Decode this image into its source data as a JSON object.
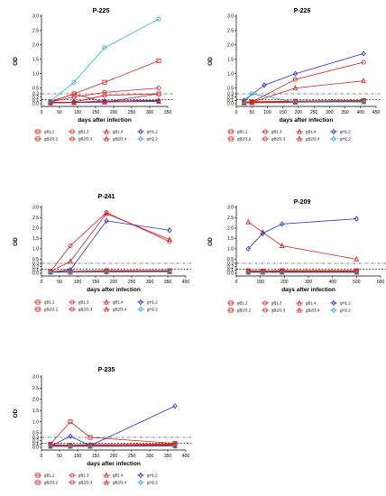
{
  "colors": {
    "red": "#cc1f1f",
    "blue": "#2a2fbf",
    "cyan": "#29a8e0",
    "axis": "#000000"
  },
  "shared": {
    "ylabel": "OD",
    "xlabel": "days after infection",
    "cutoff_lines": [
      {
        "y": 0.3,
        "style": "dash-dot"
      },
      {
        "y": 0.12,
        "style": "dashed"
      }
    ]
  },
  "chart_data": [
    {
      "type": "line",
      "title": "P-225",
      "xlabel": "days after infection",
      "ylabel": "OD",
      "xlim": [
        0,
        350
      ],
      "xticks": [
        0,
        50,
        100,
        150,
        200,
        250,
        300,
        350
      ],
      "legend": {
        "placement": "below",
        "entries": [
          "gB1.2",
          "gB1.3",
          "gB1.4",
          "gH1.2",
          "gB2/3.2",
          "gB2/3.3",
          "gB2/3.4",
          "gH2.2"
        ]
      },
      "series": [
        {
          "name": "gB1.2",
          "color": "red",
          "marker": "square",
          "x": [
            25,
            90,
            175,
            325
          ],
          "y": [
            0.05,
            0.3,
            0.05,
            0.3
          ]
        },
        {
          "name": "gB1.3",
          "color": "red",
          "marker": "circle",
          "x": [
            25,
            90,
            175,
            325
          ],
          "y": [
            0.04,
            0.05,
            0.25,
            0.3
          ]
        },
        {
          "name": "gB1.4",
          "color": "red",
          "marker": "triangle",
          "x": [
            25,
            90,
            175,
            325
          ],
          "y": [
            0.03,
            0.04,
            0.05,
            0.08
          ]
        },
        {
          "name": "gH1.2",
          "color": "blue",
          "marker": "diamond",
          "x": [
            25,
            90,
            175,
            325
          ],
          "y": [
            0.03,
            0.04,
            0.08,
            0.1
          ]
        },
        {
          "name": "gB2/3.2",
          "color": "red",
          "marker": "square",
          "x": [
            25,
            90,
            175,
            325
          ],
          "y": [
            0.06,
            0.3,
            0.7,
            1.45
          ]
        },
        {
          "name": "gB2/3.3",
          "color": "red",
          "marker": "circle",
          "x": [
            25,
            90,
            175,
            325
          ],
          "y": [
            0.05,
            0.2,
            0.35,
            0.5
          ]
        },
        {
          "name": "gB2/3.4",
          "color": "red",
          "marker": "triangle",
          "x": [
            25,
            90,
            175,
            325
          ],
          "y": [
            0.02,
            0.03,
            0.05,
            0.07
          ]
        },
        {
          "name": "gH2.2",
          "color": "cyan",
          "marker": "circle",
          "x": [
            25,
            90,
            175,
            325
          ],
          "y": [
            0.08,
            0.7,
            1.9,
            2.9
          ]
        }
      ]
    },
    {
      "type": "line",
      "title": "P-226",
      "xlabel": "days after infection",
      "ylabel": "OD",
      "xlim": [
        0,
        450
      ],
      "xticks": [
        0,
        50,
        100,
        150,
        200,
        250,
        300,
        350,
        400,
        450
      ],
      "legend": {
        "placement": "below",
        "entries": [
          "gB1.2",
          "gB1.3",
          "gB1.4",
          "gH1.2",
          "gB2/3.2",
          "gB2/3.3",
          "gB2/3.4",
          "gH2.2"
        ]
      },
      "series": [
        {
          "name": "gB1.2",
          "color": "red",
          "marker": "square",
          "x": [
            25,
            50,
            190,
            410
          ],
          "y": [
            0.05,
            0.06,
            0.08,
            0.1
          ]
        },
        {
          "name": "gB1.3",
          "color": "red",
          "marker": "circle",
          "x": [
            25,
            50,
            190,
            410
          ],
          "y": [
            0.04,
            0.05,
            0.8,
            1.4
          ]
        },
        {
          "name": "gB1.4",
          "color": "red",
          "marker": "triangle",
          "x": [
            25,
            50,
            190,
            410
          ],
          "y": [
            0.03,
            0.04,
            0.5,
            0.75
          ]
        },
        {
          "name": "gH1.2",
          "color": "blue",
          "marker": "diamond",
          "x": [
            25,
            90,
            190,
            410
          ],
          "y": [
            0.1,
            0.6,
            1.0,
            1.7
          ]
        },
        {
          "name": "gB2/3.2",
          "color": "red",
          "marker": "square",
          "x": [
            25,
            50,
            190,
            410
          ],
          "y": [
            0.04,
            0.05,
            0.06,
            0.08
          ]
        },
        {
          "name": "gB2/3.3",
          "color": "red",
          "marker": "circle",
          "x": [
            25,
            50,
            190,
            410
          ],
          "y": [
            0.03,
            0.04,
            0.05,
            0.07
          ]
        },
        {
          "name": "gB2/3.4",
          "color": "red",
          "marker": "triangle",
          "x": [
            25,
            50,
            190,
            410
          ],
          "y": [
            0.02,
            0.03,
            0.04,
            0.06
          ]
        },
        {
          "name": "gH2.2",
          "color": "cyan",
          "marker": "circle",
          "x": [
            25,
            50,
            190,
            410
          ],
          "y": [
            0.02,
            0.3,
            0.05,
            0.05
          ]
        }
      ]
    },
    {
      "type": "line",
      "title": "P-241",
      "xlabel": "days after infection",
      "ylabel": "OD",
      "xlim": [
        0,
        400
      ],
      "xticks": [
        0,
        50,
        100,
        150,
        200,
        250,
        300,
        350,
        400
      ],
      "legend": {
        "placement": "below",
        "entries": [
          "gB1.2",
          "gB1.3",
          "gB1.4",
          "gH1.2",
          "gB2/3.2",
          "gB2/3.3",
          "gB2/3.4",
          "gH2.2"
        ]
      },
      "series": [
        {
          "name": "gB1.2",
          "color": "red",
          "marker": "square",
          "x": [
            25,
            80,
            180,
            355
          ],
          "y": [
            0.05,
            0.06,
            0.08,
            0.08
          ]
        },
        {
          "name": "gB1.3",
          "color": "red",
          "marker": "circle",
          "x": [
            25,
            80,
            180,
            355
          ],
          "y": [
            0.05,
            1.15,
            2.75,
            1.35
          ]
        },
        {
          "name": "gB1.4",
          "color": "red",
          "marker": "triangle",
          "x": [
            25,
            80,
            180,
            355
          ],
          "y": [
            0.04,
            0.4,
            2.7,
            1.45
          ]
        },
        {
          "name": "gH1.2",
          "color": "blue",
          "marker": "diamond",
          "x": [
            25,
            80,
            180,
            355
          ],
          "y": [
            0.04,
            0.1,
            2.35,
            1.9
          ]
        },
        {
          "name": "gB2/3.2",
          "color": "red",
          "marker": "square",
          "x": [
            25,
            80,
            180,
            355
          ],
          "y": [
            0.04,
            0.05,
            0.06,
            0.06
          ]
        },
        {
          "name": "gB2/3.3",
          "color": "red",
          "marker": "circle",
          "x": [
            25,
            80,
            180,
            355
          ],
          "y": [
            0.03,
            0.04,
            0.05,
            0.05
          ]
        },
        {
          "name": "gB2/3.4",
          "color": "red",
          "marker": "triangle",
          "x": [
            25,
            80,
            180,
            355
          ],
          "y": [
            0.03,
            0.03,
            0.04,
            0.04
          ]
        },
        {
          "name": "gH2.2",
          "color": "cyan",
          "marker": "circle",
          "x": [
            25,
            80,
            180,
            355
          ],
          "y": [
            0.02,
            0.03,
            0.03,
            0.04
          ]
        }
      ]
    },
    {
      "type": "line",
      "title": "P-209",
      "xlabel": "days after infection",
      "ylabel": "OD",
      "xlim": [
        0,
        600
      ],
      "xticks": [
        0,
        100,
        200,
        300,
        400,
        500,
        600
      ],
      "legend": {
        "placement": "below",
        "entries": [
          "gB1.2",
          "gB1.3",
          "gB1.4",
          "gH1.2",
          "gB2/3.2",
          "gB2/3.3",
          "gB2/3.4",
          "gH2.2"
        ]
      },
      "series": [
        {
          "name": "gB1.2",
          "color": "red",
          "marker": "square",
          "x": [
            50,
            110,
            190,
            500
          ],
          "y": [
            0.08,
            0.07,
            0.08,
            0.08
          ]
        },
        {
          "name": "gB1.3",
          "color": "red",
          "marker": "circle",
          "x": [
            50,
            110,
            190,
            500
          ],
          "y": [
            0.06,
            0.05,
            0.06,
            0.06
          ]
        },
        {
          "name": "gB1.4",
          "color": "red",
          "marker": "triangle",
          "x": [
            50,
            110,
            190,
            500
          ],
          "y": [
            2.3,
            1.8,
            1.15,
            0.5
          ]
        },
        {
          "name": "gH1.2",
          "color": "blue",
          "marker": "diamond",
          "x": [
            50,
            110,
            190,
            500
          ],
          "y": [
            1.0,
            1.75,
            2.2,
            2.45
          ]
        },
        {
          "name": "gB2/3.2",
          "color": "red",
          "marker": "square",
          "x": [
            50,
            110,
            190,
            500
          ],
          "y": [
            0.05,
            0.04,
            0.05,
            0.05
          ]
        },
        {
          "name": "gB2/3.3",
          "color": "red",
          "marker": "circle",
          "x": [
            50,
            110,
            190,
            500
          ],
          "y": [
            0.04,
            0.03,
            0.04,
            0.04
          ]
        },
        {
          "name": "gB2/3.4",
          "color": "red",
          "marker": "triangle",
          "x": [
            50,
            110,
            190,
            500
          ],
          "y": [
            0.03,
            0.03,
            0.03,
            0.03
          ]
        },
        {
          "name": "gH2.2",
          "color": "cyan",
          "marker": "circle",
          "x": [
            50,
            110,
            190,
            500
          ],
          "y": [
            0.02,
            0.02,
            0.02,
            0.02
          ]
        }
      ]
    },
    {
      "type": "line",
      "title": "P-235",
      "xlabel": "days after infection",
      "ylabel": "OD",
      "xlim": [
        0,
        400
      ],
      "xticks": [
        0,
        50,
        100,
        150,
        200,
        250,
        300,
        350,
        400
      ],
      "legend": {
        "placement": "below",
        "entries": [
          "gB1.2",
          "gB1.3",
          "gB1.4",
          "gH1.2",
          "gB2/3.2",
          "gB2/3.3",
          "gB2/3.4",
          "gH2.2"
        ]
      },
      "series": [
        {
          "name": "gB1.2",
          "color": "red",
          "marker": "square",
          "x": [
            25,
            80,
            135,
            370
          ],
          "y": [
            0.1,
            1.0,
            0.3,
            0.12
          ]
        },
        {
          "name": "gB1.3",
          "color": "red",
          "marker": "circle",
          "x": [
            25,
            80,
            135,
            370
          ],
          "y": [
            0.08,
            0.07,
            0.08,
            0.1
          ]
        },
        {
          "name": "gB1.4",
          "color": "red",
          "marker": "triangle",
          "x": [
            25,
            80,
            135,
            370
          ],
          "y": [
            0.06,
            0.05,
            0.06,
            0.08
          ]
        },
        {
          "name": "gH1.2",
          "color": "blue",
          "marker": "diamond",
          "x": [
            25,
            80,
            135,
            370
          ],
          "y": [
            0.04,
            0.35,
            0.05,
            1.7
          ]
        },
        {
          "name": "gB2/3.2",
          "color": "red",
          "marker": "square",
          "x": [
            25,
            80,
            135,
            370
          ],
          "y": [
            0.05,
            0.04,
            0.05,
            0.06
          ]
        },
        {
          "name": "gB2/3.3",
          "color": "red",
          "marker": "circle",
          "x": [
            25,
            80,
            135,
            370
          ],
          "y": [
            0.04,
            0.03,
            0.04,
            0.05
          ]
        },
        {
          "name": "gB2/3.4",
          "color": "red",
          "marker": "triangle",
          "x": [
            25,
            80,
            135,
            370
          ],
          "y": [
            0.03,
            0.03,
            0.03,
            0.04
          ]
        },
        {
          "name": "gH2.2",
          "color": "cyan",
          "marker": "circle",
          "x": [
            25,
            80,
            135,
            370
          ],
          "y": [
            0.02,
            0.02,
            0.02,
            0.03
          ]
        }
      ]
    }
  ]
}
